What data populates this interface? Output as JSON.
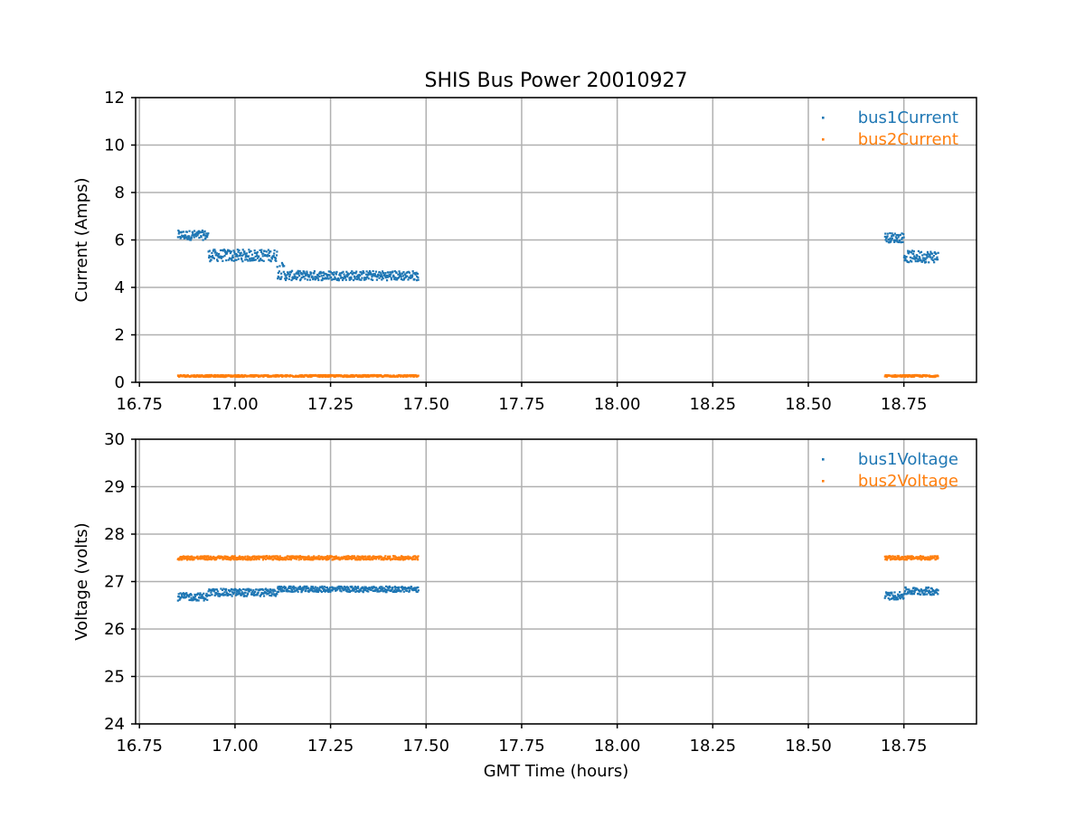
{
  "figure_title": "SHIS Bus Power 20010927",
  "chart_data": [
    {
      "type": "scatter",
      "title": "SHIS Bus Power 20010927",
      "xlabel": "",
      "ylabel": "Current (Amps)",
      "xlim": [
        16.74,
        18.94
      ],
      "ylim": [
        0,
        12
      ],
      "xticks": [
        16.75,
        17.0,
        17.25,
        17.5,
        17.75,
        18.0,
        18.25,
        18.5,
        18.75
      ],
      "xtick_labels": [
        "16.75",
        "17.00",
        "17.25",
        "17.50",
        "17.75",
        "18.00",
        "18.25",
        "18.50",
        "18.75"
      ],
      "yticks": [
        0,
        2,
        4,
        6,
        8,
        10,
        12
      ],
      "ytick_labels": [
        "0",
        "2",
        "4",
        "6",
        "8",
        "10",
        "12"
      ],
      "grid": true,
      "legend_position": "top-right",
      "series": [
        {
          "name": "bus1Current",
          "color": "#1f77b4",
          "segments": [
            {
              "x_start": 16.85,
              "x_end": 16.93,
              "y": 6.2,
              "spread": 0.2
            },
            {
              "x_start": 16.93,
              "x_end": 17.11,
              "y": 5.35,
              "spread": 0.25
            },
            {
              "x_start": 17.11,
              "x_end": 17.13,
              "y": 4.7,
              "spread": 0.35
            },
            {
              "x_start": 17.13,
              "x_end": 17.48,
              "y": 4.5,
              "spread": 0.2
            },
            {
              "x_start": 18.7,
              "x_end": 18.75,
              "y": 6.1,
              "spread": 0.2
            },
            {
              "x_start": 18.75,
              "x_end": 18.84,
              "y": 5.3,
              "spread": 0.25
            }
          ]
        },
        {
          "name": "bus2Current",
          "color": "#ff7f0e",
          "segments": [
            {
              "x_start": 16.85,
              "x_end": 17.48,
              "y": 0.27,
              "spread": 0.04
            },
            {
              "x_start": 18.7,
              "x_end": 18.84,
              "y": 0.27,
              "spread": 0.04
            }
          ]
        }
      ]
    },
    {
      "type": "scatter",
      "title": "",
      "xlabel": "GMT Time (hours)",
      "ylabel": "Voltage (volts)",
      "xlim": [
        16.74,
        18.94
      ],
      "ylim": [
        24,
        30
      ],
      "xticks": [
        16.75,
        17.0,
        17.25,
        17.5,
        17.75,
        18.0,
        18.25,
        18.5,
        18.75
      ],
      "xtick_labels": [
        "16.75",
        "17.00",
        "17.25",
        "17.50",
        "17.75",
        "18.00",
        "18.25",
        "18.50",
        "18.75"
      ],
      "yticks": [
        24,
        25,
        26,
        27,
        28,
        29,
        30
      ],
      "ytick_labels": [
        "24",
        "25",
        "26",
        "27",
        "28",
        "29",
        "30"
      ],
      "grid": true,
      "legend_position": "top-right",
      "series": [
        {
          "name": "bus1Voltage",
          "color": "#1f77b4",
          "segments": [
            {
              "x_start": 16.85,
              "x_end": 16.93,
              "y": 26.68,
              "spread": 0.08
            },
            {
              "x_start": 16.93,
              "x_end": 17.11,
              "y": 26.77,
              "spread": 0.08
            },
            {
              "x_start": 17.11,
              "x_end": 17.48,
              "y": 26.84,
              "spread": 0.06
            },
            {
              "x_start": 18.7,
              "x_end": 18.75,
              "y": 26.7,
              "spread": 0.08
            },
            {
              "x_start": 18.75,
              "x_end": 18.84,
              "y": 26.8,
              "spread": 0.08
            }
          ]
        },
        {
          "name": "bus2Voltage",
          "color": "#ff7f0e",
          "segments": [
            {
              "x_start": 16.85,
              "x_end": 17.48,
              "y": 27.5,
              "spread": 0.04
            },
            {
              "x_start": 18.7,
              "x_end": 18.84,
              "y": 27.5,
              "spread": 0.04
            }
          ]
        }
      ]
    }
  ]
}
